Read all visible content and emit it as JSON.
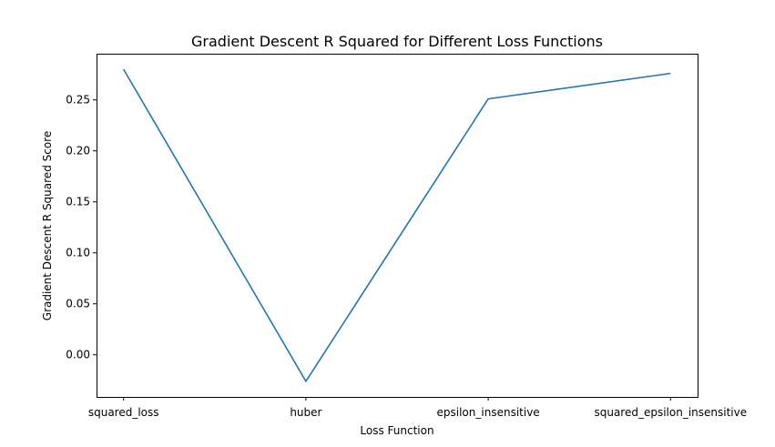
{
  "chart_data": {
    "type": "line",
    "title": "Gradient Descent R Squared for Different Loss Functions",
    "xlabel": "Loss Function",
    "ylabel": "Gradient Descent R Squared Score",
    "categories": [
      "squared_loss",
      "huber",
      "epsilon_insensitive",
      "squared_epsilon_insensitive"
    ],
    "series": [
      {
        "values": [
          0.28,
          -0.026,
          0.251,
          0.276
        ],
        "color": "#1f77b4"
      }
    ],
    "yticks": [
      0.0,
      0.05,
      0.1,
      0.15,
      0.2,
      0.25
    ],
    "ytick_labels": [
      "0.00",
      "0.05",
      "0.10",
      "0.15",
      "0.20",
      "0.25"
    ],
    "ylim": [
      -0.0413,
      0.2953
    ],
    "grid": false,
    "legend": "none"
  }
}
